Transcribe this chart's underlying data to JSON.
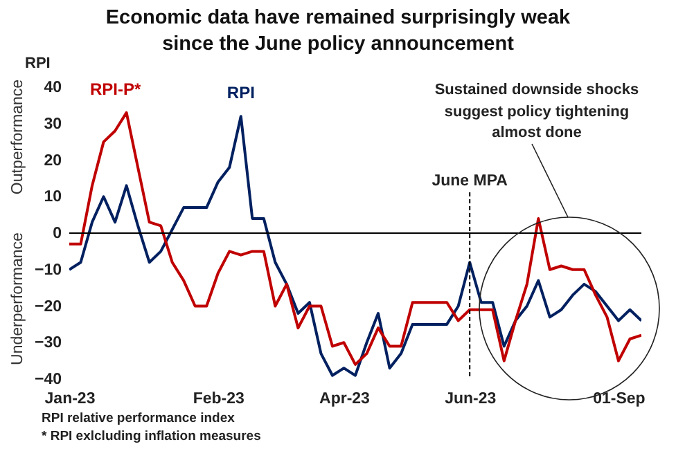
{
  "chart_data": {
    "type": "line",
    "title": "Economic data have remained surprisingly weak since the June policy announcement",
    "ylabel": "RPI",
    "categories": [
      "Jan-23",
      null,
      null,
      null,
      null,
      null,
      null,
      null,
      null,
      null,
      null,
      null,
      null,
      "Feb-23",
      null,
      null,
      null,
      null,
      null,
      null,
      null,
      null,
      null,
      null,
      "Apr-23",
      null,
      null,
      null,
      null,
      null,
      null,
      null,
      null,
      null,
      null,
      "Jun-23",
      null,
      null,
      null,
      null,
      null,
      null,
      null,
      null,
      null,
      null,
      null,
      null,
      "01-Sep",
      null,
      null
    ],
    "series": [
      {
        "name": "RPI",
        "color": "#002060",
        "values": [
          -10,
          -8,
          3,
          10,
          3,
          13,
          2,
          -8,
          -5,
          1,
          7,
          7,
          7,
          14,
          18,
          32,
          4,
          4,
          -8,
          -14,
          -22,
          -19,
          -33,
          -39,
          -37,
          -39,
          -30,
          -22,
          -37,
          -33,
          -25,
          -25,
          -25,
          -25,
          -20,
          -8,
          -19,
          -19,
          -31,
          -24,
          -20,
          -13,
          -23,
          -21,
          -17,
          -14,
          -16,
          -20,
          -24,
          -21,
          -24
        ]
      },
      {
        "name": "RPI-P*",
        "color": "#c00000",
        "values": [
          -3,
          -3,
          13,
          25,
          28,
          33,
          18,
          3,
          2,
          -8,
          -13,
          -20,
          -20,
          -11,
          -5,
          -6,
          -5,
          -5,
          -20,
          -14,
          -26,
          -20,
          -20,
          -31,
          -30,
          -36,
          -33,
          -26,
          -31,
          -31,
          -19,
          -19,
          -19,
          -19,
          -24,
          -21,
          -21,
          -21,
          -35,
          -24,
          -14,
          4,
          -10,
          -9,
          -10,
          -10,
          -17,
          -23,
          -35,
          -29,
          -28
        ]
      }
    ],
    "ylim": [
      -40,
      40
    ],
    "yticks": [
      -40,
      -30,
      -20,
      -10,
      0,
      10,
      20,
      30,
      40
    ],
    "ref_lines": [
      {
        "axis": "y",
        "value": 0,
        "color": "#000000",
        "line_style": "solid"
      },
      {
        "axis": "x",
        "value": "Jun-23",
        "label": "June MPA",
        "color": "#000000",
        "line_style": "dashed"
      }
    ],
    "annotations": [
      "Outperformance",
      "Underperformance",
      "Sustained downside shocks suggest policy tightening almost done",
      "RPI relative performance index",
      "* RPI exlcluding inflation measures"
    ],
    "grid": false,
    "legend": false,
    "marker": "none",
    "line_style": "solid"
  }
}
